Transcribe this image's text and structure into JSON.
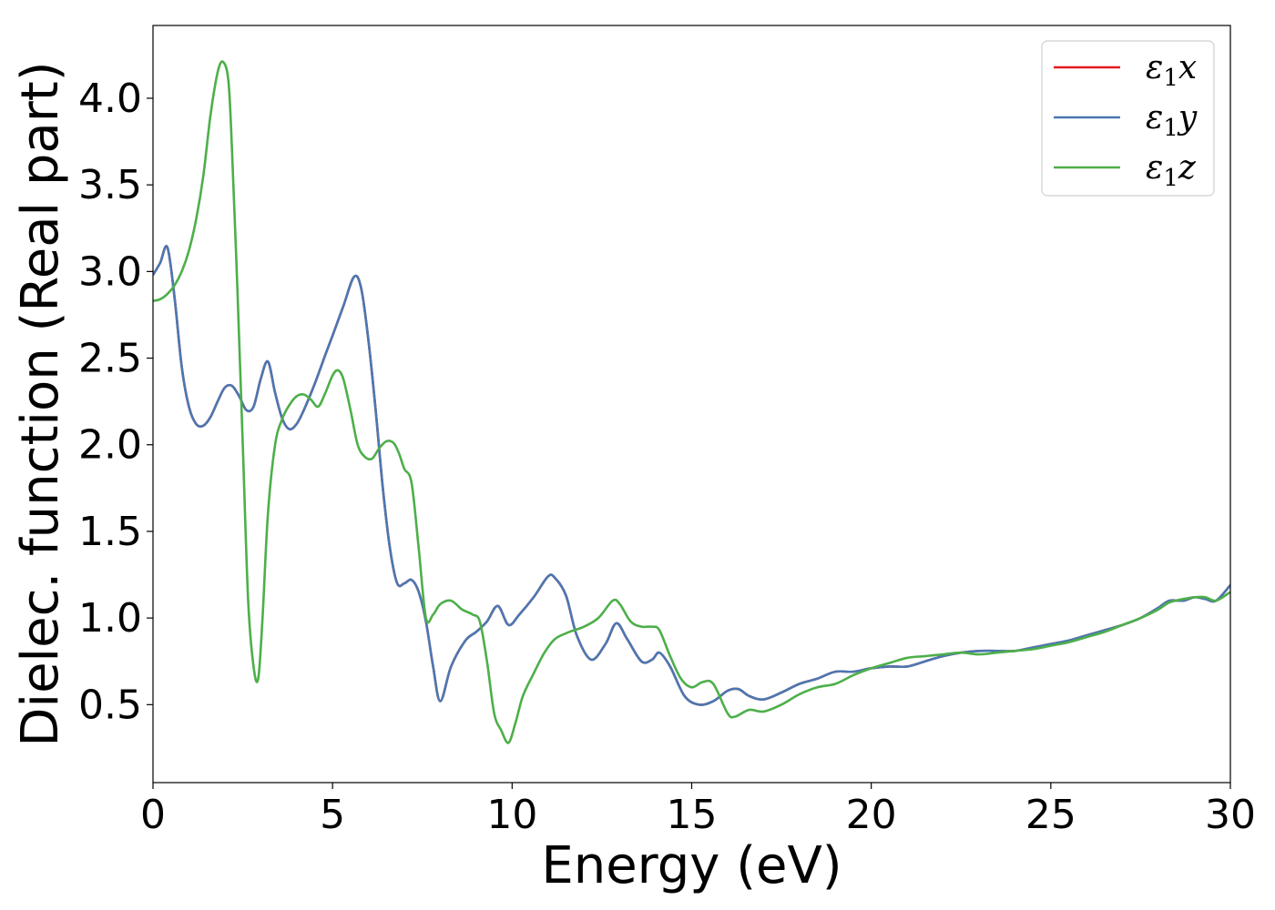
{
  "chart_data": {
    "type": "line",
    "title": "",
    "xlabel": "Energy (eV)",
    "ylabel": "Dielec. function (Real part)",
    "xlim": [
      0,
      30
    ],
    "ylim": [
      0.05,
      4.42
    ],
    "xticks": [
      0,
      5,
      10,
      15,
      20,
      25,
      30
    ],
    "xtick_labels": [
      "0",
      "5",
      "10",
      "15",
      "20",
      "25",
      "30"
    ],
    "yticks": [
      0.5,
      1.0,
      1.5,
      2.0,
      2.5,
      3.0,
      3.5,
      4.0
    ],
    "ytick_labels": [
      "0.5",
      "1.0",
      "1.5",
      "2.0",
      "2.5",
      "3.0",
      "3.5",
      "4.0"
    ],
    "grid": false,
    "legend_position": "top-right",
    "series": [
      {
        "name": "ε1x",
        "legend_main": "ε",
        "legend_sub": "1",
        "legend_var": "x",
        "color": "#e41a1c",
        "x": [
          0,
          0.2,
          0.4,
          0.6,
          0.8,
          1.0,
          1.2,
          1.4,
          1.6,
          1.8,
          2.0,
          2.2,
          2.4,
          2.6,
          2.8,
          3.0,
          3.2,
          3.4,
          3.6,
          3.8,
          4.0,
          4.2,
          4.5,
          4.8,
          5.0,
          5.3,
          5.6,
          5.8,
          6.0,
          6.2,
          6.4,
          6.6,
          6.8,
          7.0,
          7.2,
          7.4,
          7.6,
          7.8,
          8.0,
          8.3,
          8.7,
          9.0,
          9.3,
          9.6,
          9.9,
          10.2,
          10.6,
          11.0,
          11.2,
          11.5,
          11.8,
          12.2,
          12.6,
          12.9,
          13.2,
          13.6,
          13.9,
          14.1,
          14.4,
          14.8,
          15.2,
          15.6,
          16.0,
          16.3,
          16.6,
          17.0,
          17.5,
          18.0,
          18.5,
          19.0,
          19.5,
          20.0,
          20.5,
          21.0,
          21.5,
          22.0,
          22.5,
          23.0,
          23.5,
          24.0,
          24.5,
          25.0,
          25.5,
          26.0,
          26.5,
          27.0,
          27.5,
          28.0,
          28.3,
          28.7,
          29.0,
          29.3,
          29.6,
          30.0
        ],
        "y": [
          2.98,
          3.05,
          3.14,
          2.85,
          2.45,
          2.22,
          2.12,
          2.11,
          2.16,
          2.25,
          2.33,
          2.34,
          2.28,
          2.2,
          2.22,
          2.38,
          2.48,
          2.3,
          2.15,
          2.09,
          2.12,
          2.2,
          2.35,
          2.52,
          2.63,
          2.8,
          2.97,
          2.9,
          2.6,
          2.2,
          1.75,
          1.4,
          1.2,
          1.2,
          1.22,
          1.15,
          0.98,
          0.72,
          0.52,
          0.72,
          0.87,
          0.92,
          0.98,
          1.07,
          0.96,
          1.02,
          1.12,
          1.24,
          1.23,
          1.13,
          0.9,
          0.76,
          0.85,
          0.97,
          0.88,
          0.75,
          0.76,
          0.8,
          0.72,
          0.55,
          0.5,
          0.52,
          0.58,
          0.59,
          0.55,
          0.53,
          0.57,
          0.62,
          0.65,
          0.69,
          0.69,
          0.71,
          0.72,
          0.72,
          0.75,
          0.78,
          0.8,
          0.81,
          0.81,
          0.81,
          0.83,
          0.85,
          0.87,
          0.9,
          0.93,
          0.96,
          1.0,
          1.06,
          1.1,
          1.1,
          1.12,
          1.11,
          1.1,
          1.19
        ]
      },
      {
        "name": "ε1y",
        "legend_main": "ε",
        "legend_sub": "1",
        "legend_var": "y",
        "color": "#4a78b2",
        "x": [
          0,
          0.2,
          0.4,
          0.6,
          0.8,
          1.0,
          1.2,
          1.4,
          1.6,
          1.8,
          2.0,
          2.2,
          2.4,
          2.6,
          2.8,
          3.0,
          3.2,
          3.4,
          3.6,
          3.8,
          4.0,
          4.2,
          4.5,
          4.8,
          5.0,
          5.3,
          5.6,
          5.8,
          6.0,
          6.2,
          6.4,
          6.6,
          6.8,
          7.0,
          7.2,
          7.4,
          7.6,
          7.8,
          8.0,
          8.3,
          8.7,
          9.0,
          9.3,
          9.6,
          9.9,
          10.2,
          10.6,
          11.0,
          11.2,
          11.5,
          11.8,
          12.2,
          12.6,
          12.9,
          13.2,
          13.6,
          13.9,
          14.1,
          14.4,
          14.8,
          15.2,
          15.6,
          16.0,
          16.3,
          16.6,
          17.0,
          17.5,
          18.0,
          18.5,
          19.0,
          19.5,
          20.0,
          20.5,
          21.0,
          21.5,
          22.0,
          22.5,
          23.0,
          23.5,
          24.0,
          24.5,
          25.0,
          25.5,
          26.0,
          26.5,
          27.0,
          27.5,
          28.0,
          28.3,
          28.7,
          29.0,
          29.3,
          29.6,
          30.0
        ],
        "y": [
          2.98,
          3.05,
          3.14,
          2.85,
          2.45,
          2.22,
          2.12,
          2.11,
          2.16,
          2.25,
          2.33,
          2.34,
          2.28,
          2.2,
          2.22,
          2.38,
          2.48,
          2.3,
          2.15,
          2.09,
          2.12,
          2.2,
          2.35,
          2.52,
          2.63,
          2.8,
          2.97,
          2.9,
          2.6,
          2.2,
          1.75,
          1.4,
          1.2,
          1.2,
          1.22,
          1.15,
          0.98,
          0.72,
          0.52,
          0.72,
          0.87,
          0.92,
          0.98,
          1.07,
          0.96,
          1.02,
          1.12,
          1.24,
          1.23,
          1.13,
          0.9,
          0.76,
          0.85,
          0.97,
          0.88,
          0.75,
          0.76,
          0.8,
          0.72,
          0.55,
          0.5,
          0.52,
          0.58,
          0.59,
          0.55,
          0.53,
          0.57,
          0.62,
          0.65,
          0.69,
          0.69,
          0.71,
          0.72,
          0.72,
          0.75,
          0.78,
          0.8,
          0.81,
          0.81,
          0.81,
          0.83,
          0.85,
          0.87,
          0.9,
          0.93,
          0.96,
          1.0,
          1.06,
          1.1,
          1.1,
          1.12,
          1.11,
          1.1,
          1.19
        ]
      },
      {
        "name": "ε1z",
        "legend_main": "ε",
        "legend_sub": "1",
        "legend_var": "z",
        "color": "#4daf4a",
        "x": [
          0,
          0.2,
          0.4,
          0.6,
          0.8,
          1.0,
          1.2,
          1.4,
          1.6,
          1.8,
          1.95,
          2.1,
          2.2,
          2.35,
          2.5,
          2.65,
          2.8,
          2.93,
          3.05,
          3.2,
          3.4,
          3.6,
          3.8,
          4.0,
          4.2,
          4.4,
          4.6,
          4.8,
          5.0,
          5.15,
          5.3,
          5.5,
          5.7,
          5.9,
          6.1,
          6.3,
          6.5,
          6.7,
          6.85,
          7.0,
          7.2,
          7.4,
          7.6,
          7.8,
          8.0,
          8.3,
          8.6,
          8.9,
          9.1,
          9.3,
          9.5,
          9.7,
          9.9,
          10.1,
          10.3,
          10.6,
          10.9,
          11.2,
          11.6,
          12.0,
          12.4,
          12.8,
          13.0,
          13.3,
          13.6,
          13.9,
          14.1,
          14.4,
          14.7,
          15.0,
          15.3,
          15.6,
          16.0,
          16.2,
          16.6,
          17.0,
          17.5,
          18.0,
          18.5,
          19.0,
          19.5,
          20.0,
          20.5,
          21.0,
          21.5,
          22.0,
          22.5,
          23.0,
          23.5,
          24.0,
          24.5,
          25.0,
          25.5,
          26.0,
          26.5,
          27.0,
          27.5,
          28.0,
          28.3,
          28.7,
          29.0,
          29.3,
          29.6,
          30.0
        ],
        "y": [
          2.83,
          2.84,
          2.87,
          2.92,
          3.0,
          3.12,
          3.3,
          3.55,
          3.9,
          4.15,
          4.21,
          4.1,
          3.7,
          2.9,
          2.0,
          1.1,
          0.72,
          0.65,
          1.0,
          1.6,
          2.0,
          2.15,
          2.23,
          2.28,
          2.29,
          2.26,
          2.22,
          2.3,
          2.4,
          2.43,
          2.38,
          2.2,
          2.0,
          1.93,
          1.92,
          1.98,
          2.02,
          2.01,
          1.95,
          1.86,
          1.78,
          1.4,
          1.0,
          1.02,
          1.08,
          1.1,
          1.05,
          1.02,
          0.98,
          0.75,
          0.45,
          0.35,
          0.28,
          0.4,
          0.55,
          0.68,
          0.8,
          0.88,
          0.92,
          0.95,
          1.0,
          1.1,
          1.08,
          0.98,
          0.95,
          0.95,
          0.93,
          0.78,
          0.65,
          0.6,
          0.63,
          0.62,
          0.45,
          0.43,
          0.47,
          0.46,
          0.5,
          0.56,
          0.6,
          0.62,
          0.67,
          0.71,
          0.74,
          0.77,
          0.78,
          0.79,
          0.8,
          0.79,
          0.8,
          0.81,
          0.82,
          0.84,
          0.86,
          0.89,
          0.92,
          0.96,
          1.0,
          1.05,
          1.09,
          1.11,
          1.12,
          1.12,
          1.1,
          1.15
        ]
      }
    ]
  }
}
